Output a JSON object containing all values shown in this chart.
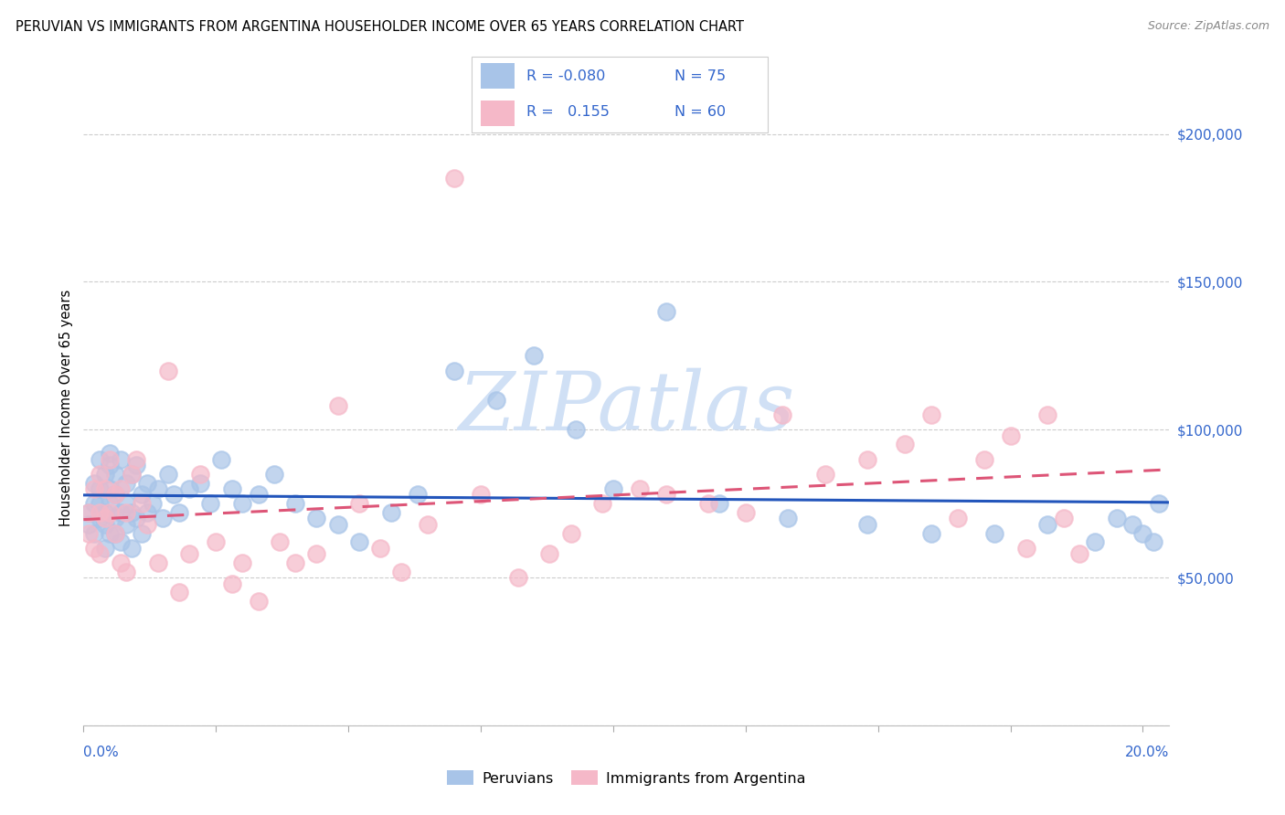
{
  "title": "PERUVIAN VS IMMIGRANTS FROM ARGENTINA HOUSEHOLDER INCOME OVER 65 YEARS CORRELATION CHART",
  "source": "Source: ZipAtlas.com",
  "ylabel": "Householder Income Over 65 years",
  "xlim": [
    0.0,
    0.205
  ],
  "ylim": [
    0,
    215000
  ],
  "yticks": [
    0,
    50000,
    100000,
    150000,
    200000
  ],
  "ytick_labels": [
    "",
    "$50,000",
    "$100,000",
    "$150,000",
    "$200,000"
  ],
  "blue_color": "#a8c4e8",
  "pink_color": "#f5b8c8",
  "line_blue": "#2255bb",
  "line_pink": "#dd5577",
  "watermark_color": "#d0e0f5",
  "blue_scatter_x": [
    0.001,
    0.001,
    0.002,
    0.002,
    0.002,
    0.003,
    0.003,
    0.003,
    0.003,
    0.004,
    0.004,
    0.004,
    0.004,
    0.005,
    0.005,
    0.005,
    0.005,
    0.005,
    0.006,
    0.006,
    0.006,
    0.006,
    0.007,
    0.007,
    0.007,
    0.008,
    0.008,
    0.008,
    0.009,
    0.009,
    0.009,
    0.01,
    0.01,
    0.011,
    0.011,
    0.012,
    0.012,
    0.013,
    0.014,
    0.015,
    0.016,
    0.017,
    0.018,
    0.02,
    0.022,
    0.024,
    0.026,
    0.028,
    0.03,
    0.033,
    0.036,
    0.04,
    0.044,
    0.048,
    0.052,
    0.058,
    0.063,
    0.07,
    0.078,
    0.085,
    0.093,
    0.1,
    0.11,
    0.12,
    0.133,
    0.148,
    0.16,
    0.172,
    0.182,
    0.191,
    0.195,
    0.198,
    0.2,
    0.202,
    0.203
  ],
  "blue_scatter_y": [
    72000,
    68000,
    75000,
    82000,
    65000,
    70000,
    80000,
    75000,
    90000,
    68000,
    85000,
    72000,
    60000,
    88000,
    75000,
    65000,
    80000,
    92000,
    70000,
    78000,
    85000,
    65000,
    90000,
    72000,
    62000,
    82000,
    75000,
    68000,
    85000,
    72000,
    60000,
    88000,
    70000,
    78000,
    65000,
    82000,
    72000,
    75000,
    80000,
    70000,
    85000,
    78000,
    72000,
    80000,
    82000,
    75000,
    90000,
    80000,
    75000,
    78000,
    85000,
    75000,
    70000,
    68000,
    62000,
    72000,
    78000,
    120000,
    110000,
    125000,
    100000,
    80000,
    140000,
    75000,
    70000,
    68000,
    65000,
    65000,
    68000,
    62000,
    70000,
    68000,
    65000,
    62000,
    75000
  ],
  "pink_scatter_x": [
    0.001,
    0.001,
    0.002,
    0.002,
    0.003,
    0.003,
    0.003,
    0.004,
    0.004,
    0.005,
    0.005,
    0.006,
    0.006,
    0.007,
    0.007,
    0.008,
    0.008,
    0.009,
    0.01,
    0.011,
    0.012,
    0.014,
    0.016,
    0.018,
    0.02,
    0.022,
    0.025,
    0.028,
    0.03,
    0.033,
    0.037,
    0.04,
    0.044,
    0.048,
    0.052,
    0.056,
    0.06,
    0.065,
    0.07,
    0.075,
    0.082,
    0.088,
    0.092,
    0.098,
    0.105,
    0.11,
    0.118,
    0.125,
    0.132,
    0.14,
    0.148,
    0.155,
    0.16,
    0.165,
    0.17,
    0.175,
    0.178,
    0.182,
    0.185,
    0.188
  ],
  "pink_scatter_y": [
    72000,
    65000,
    80000,
    60000,
    85000,
    72000,
    58000,
    70000,
    80000,
    72000,
    90000,
    65000,
    78000,
    55000,
    80000,
    72000,
    52000,
    85000,
    90000,
    75000,
    68000,
    55000,
    120000,
    45000,
    58000,
    85000,
    62000,
    48000,
    55000,
    42000,
    62000,
    55000,
    58000,
    108000,
    75000,
    60000,
    52000,
    68000,
    185000,
    78000,
    50000,
    58000,
    65000,
    75000,
    80000,
    78000,
    75000,
    72000,
    105000,
    85000,
    90000,
    95000,
    105000,
    70000,
    90000,
    98000,
    60000,
    105000,
    70000,
    58000
  ]
}
